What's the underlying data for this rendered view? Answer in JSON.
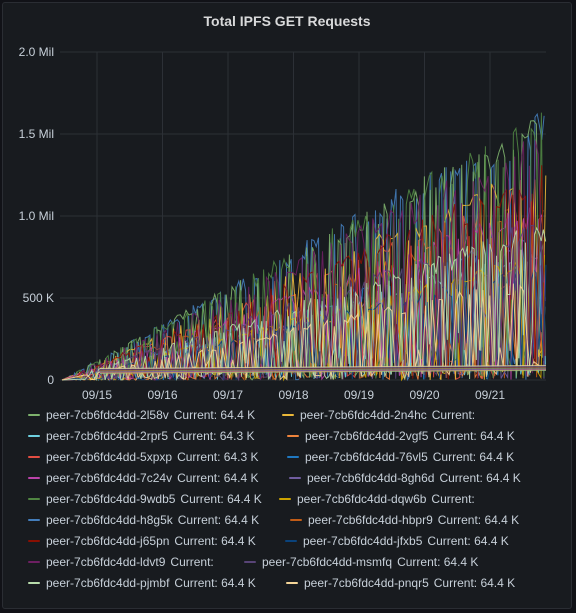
{
  "chart_data": {
    "type": "line",
    "title": "Total IPFS GET Requests",
    "xlabel": "",
    "ylabel": "",
    "x_ticks": [
      "09/15",
      "09/16",
      "09/17",
      "09/18",
      "09/19",
      "09/20",
      "09/21"
    ],
    "y_ticks": [
      "0",
      "500 K",
      "1.0 Mil",
      "1.5 Mil",
      "2.0 Mil"
    ],
    "ylim": [
      0,
      2000000
    ],
    "xlim_days": [
      "09/14",
      "09/21"
    ],
    "grid": true,
    "legend_position": "bottom",
    "series_max_envelope": [
      {
        "date": "09/14",
        "value": 0
      },
      {
        "date": "09/15",
        "value": 230000
      },
      {
        "date": "09/16",
        "value": 460000
      },
      {
        "date": "09/17",
        "value": 690000
      },
      {
        "date": "09/18",
        "value": 920000
      },
      {
        "date": "09/19",
        "value": 1150000
      },
      {
        "date": "09/20",
        "value": 1380000
      },
      {
        "date": "09/21",
        "value": 1610000
      },
      {
        "date": "09/21",
        "value": 1700000
      }
    ],
    "series": [
      {
        "name": "peer-7cb6fdc4dd-2l58v",
        "current": "Current: 64.4 K",
        "color": "#7eb26d"
      },
      {
        "name": "peer-7cb6fdc4dd-2n4hc",
        "current": "Current:",
        "color": "#eab839"
      },
      {
        "name": "peer-7cb6fdc4dd-2rpr5",
        "current": "Current: 64.3 K",
        "color": "#6ed0e0"
      },
      {
        "name": "peer-7cb6fdc4dd-2vgf5",
        "current": "Current: 64.4 K",
        "color": "#ef843c"
      },
      {
        "name": "peer-7cb6fdc4dd-5xpxp",
        "current": "Current: 64.3 K",
        "color": "#e24d42"
      },
      {
        "name": "peer-7cb6fdc4dd-76vl5",
        "current": "Current: 64.4 K",
        "color": "#1f78c1"
      },
      {
        "name": "peer-7cb6fdc4dd-7c24v",
        "current": "Current: 64.4 K",
        "color": "#ba43a9"
      },
      {
        "name": "peer-7cb6fdc4dd-8gh6d",
        "current": "Current: 64.4 K",
        "color": "#705da0"
      },
      {
        "name": "peer-7cb6fdc4dd-9wdb5",
        "current": "Current: 64.4 K",
        "color": "#508642"
      },
      {
        "name": "peer-7cb6fdc4dd-dqw6b",
        "current": "Current:",
        "color": "#cca300"
      },
      {
        "name": "peer-7cb6fdc4dd-h8g5k",
        "current": "Current: 64.4 K",
        "color": "#447ebc"
      },
      {
        "name": "peer-7cb6fdc4dd-hbpr9",
        "current": "Current: 64.4 K",
        "color": "#c15c17"
      },
      {
        "name": "peer-7cb6fdc4dd-j65pn",
        "current": "Current: 64.4 K",
        "color": "#890f02"
      },
      {
        "name": "peer-7cb6fdc4dd-jfxb5",
        "current": "Current: 64.4 K",
        "color": "#0a437c"
      },
      {
        "name": "peer-7cb6fdc4dd-ldvt9",
        "current": "Current:",
        "color": "#6d1f62"
      },
      {
        "name": "peer-7cb6fdc4dd-msmfq",
        "current": "Current: 64.4 K",
        "color": "#584477"
      },
      {
        "name": "peer-7cb6fdc4dd-pjmbf",
        "current": "Current: 64.4 K",
        "color": "#b7dbab"
      },
      {
        "name": "peer-7cb6fdc4dd-pnqr5",
        "current": "Current: 64.4 K",
        "color": "#f4d598"
      }
    ]
  }
}
